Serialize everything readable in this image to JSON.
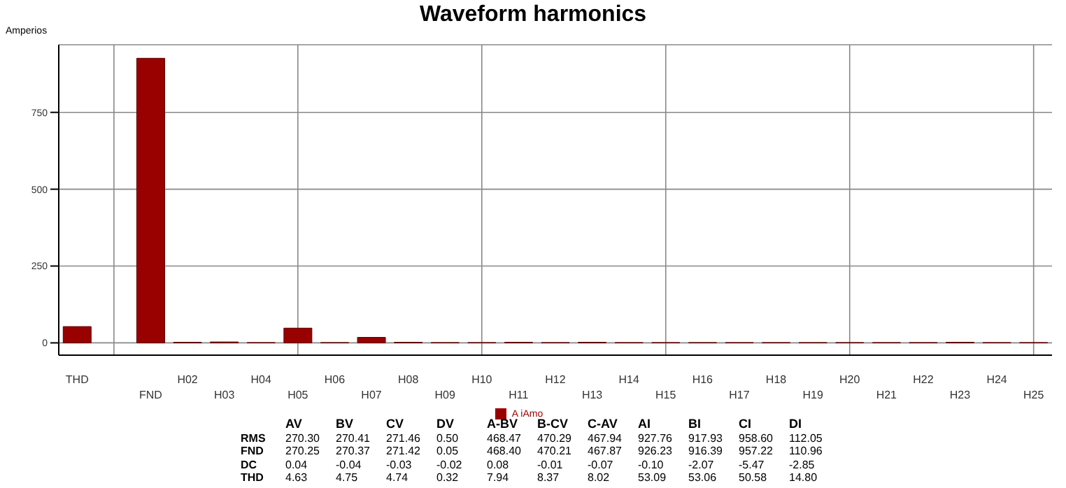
{
  "chart_data": {
    "type": "bar",
    "title": "Waveform harmonics",
    "ylabel": "Amperios",
    "categories": [
      "THD",
      null,
      "FND",
      "H02",
      "H03",
      "H04",
      "H05",
      "H06",
      "H07",
      "H08",
      "H09",
      "H10",
      "H11",
      "H12",
      "H13",
      "H14",
      "H15",
      "H16",
      "H17",
      "H18",
      "H19",
      "H20",
      "H21",
      "H22",
      "H23",
      "H24",
      "H25"
    ],
    "series": [
      {
        "name": "A iAmo",
        "color": "#990000",
        "values": [
          53,
          null,
          926,
          2,
          3,
          1,
          48,
          1,
          18,
          2,
          1,
          1,
          2,
          1,
          2,
          1,
          1,
          1,
          1,
          1,
          1,
          1,
          1,
          1,
          2,
          1,
          1
        ]
      }
    ],
    "ylim": [
      -40,
      970
    ],
    "yticks": [
      0,
      250,
      500,
      750
    ],
    "grid": true,
    "legend": "bottom",
    "annotations": [
      "AV BV CV DV A-BV B-CV C-AV AI BI CI DI",
      "RMS 270.30 270.41 271.46 0.50 468.47 470.29 467.94 927.76 917.93 958.60 112.05",
      "FND 270.25 270.37 271.42 0.05 468.40 470.21 467.87 926.23 916.39 957.22 110.96",
      "DC 0.04 -0.04 -0.03 -0.02 0.08 -0.01 -0.07 -0.10 -2.07 -5.47 -2.85",
      "THD 4.63 4.75 4.74 0.32 7.94 8.37 8.02 53.09 53.06 50.58 14.80"
    ]
  }
}
